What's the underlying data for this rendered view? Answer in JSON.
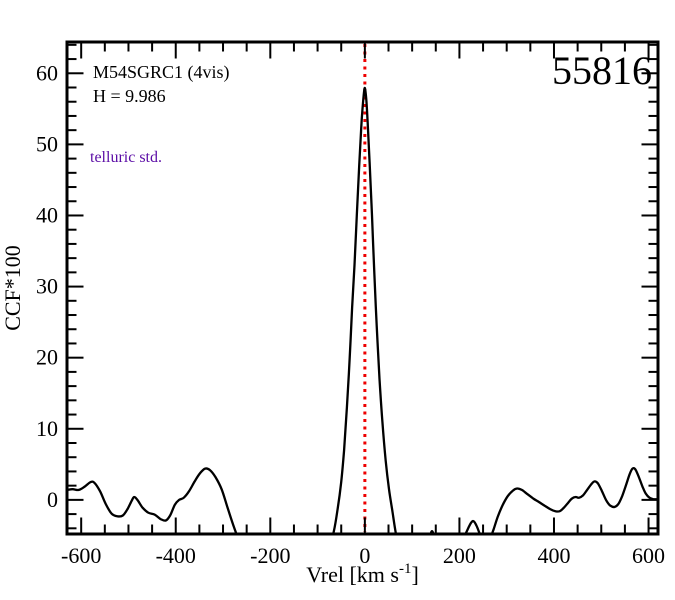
{
  "annotations": {
    "target_label": "M54SGRC1 (4vis)",
    "magnitude_label": "H = 9.986",
    "note_label": "telluric std.",
    "note_color": "#5a0ba5",
    "mjd_label": "55816"
  },
  "chart_data": {
    "type": "line",
    "title": "",
    "xlabel_main": "Vrel [km s",
    "xlabel_sup": "-1",
    "xlabel_close": "]",
    "ylabel": "CCF*100",
    "xlim": [
      -630,
      620
    ],
    "ylim": [
      -4.8,
      64.4
    ],
    "x_major_ticks": [
      -600,
      -400,
      -200,
      0,
      200,
      400,
      600
    ],
    "x_tick_labels": [
      "-600",
      "-400",
      "-200",
      "0",
      "200",
      "400",
      "600"
    ],
    "x_minor_step": 50,
    "y_major_ticks": [
      0,
      10,
      20,
      30,
      40,
      50,
      60
    ],
    "y_tick_labels": [
      "0",
      "10",
      "20",
      "30",
      "40",
      "50",
      "60"
    ],
    "y_minor_step": 2,
    "grid": false,
    "legend": false,
    "frame_color": "#000000",
    "marker_line": {
      "x": 0,
      "color": "#ee0000",
      "style": "dotted"
    },
    "series": [
      {
        "name": "ccf",
        "color": "#000000",
        "points": [
          [
            -630,
            1.4
          ],
          [
            -618,
            1.5
          ],
          [
            -605,
            1.4
          ],
          [
            -592,
            1.9
          ],
          [
            -580,
            2.5
          ],
          [
            -572,
            2.4
          ],
          [
            -560,
            1.2
          ],
          [
            -548,
            -0.6
          ],
          [
            -536,
            -1.9
          ],
          [
            -524,
            -2.3
          ],
          [
            -512,
            -2.2
          ],
          [
            -502,
            -1.3
          ],
          [
            -493,
            -0.1
          ],
          [
            -488,
            0.4
          ],
          [
            -481,
            0.0
          ],
          [
            -470,
            -1.1
          ],
          [
            -458,
            -1.8
          ],
          [
            -444,
            -2.1
          ],
          [
            -432,
            -2.7
          ],
          [
            -421,
            -2.9
          ],
          [
            -412,
            -2.2
          ],
          [
            -402,
            -0.7
          ],
          [
            -393,
            0.0
          ],
          [
            -383,
            0.3
          ],
          [
            -372,
            1.2
          ],
          [
            -360,
            2.6
          ],
          [
            -348,
            3.8
          ],
          [
            -338,
            4.4
          ],
          [
            -328,
            4.2
          ],
          [
            -316,
            3.2
          ],
          [
            -303,
            1.5
          ],
          [
            -290,
            -1.2
          ],
          [
            -278,
            -3.6
          ],
          [
            -266,
            -5.8
          ],
          [
            -255,
            -7.6
          ],
          [
            -240,
            -9.0
          ],
          [
            -220,
            -9.5
          ],
          [
            -190,
            -9.5
          ],
          [
            -160,
            -9.0
          ],
          [
            -130,
            -8.5
          ],
          [
            -110,
            -8.0
          ],
          [
            -90,
            -7.3
          ],
          [
            -75,
            -6.3
          ],
          [
            -66,
            -4.5
          ],
          [
            -58,
            -1.5
          ],
          [
            -50,
            2.5
          ],
          [
            -44,
            7.0
          ],
          [
            -38,
            13.0
          ],
          [
            -32,
            20.0
          ],
          [
            -27,
            27.0
          ],
          [
            -22,
            33.0
          ],
          [
            -17,
            40.0
          ],
          [
            -12,
            47.0
          ],
          [
            -8,
            52.0
          ],
          [
            -5,
            55.0
          ],
          [
            -2,
            57.2
          ],
          [
            0,
            57.9
          ],
          [
            3,
            56.3
          ],
          [
            6,
            53.0
          ],
          [
            10,
            47.5
          ],
          [
            15,
            40.0
          ],
          [
            20,
            32.0
          ],
          [
            25,
            24.5
          ],
          [
            31,
            17.0
          ],
          [
            37,
            11.0
          ],
          [
            44,
            5.5
          ],
          [
            51,
            1.5
          ],
          [
            58,
            -1.5
          ],
          [
            65,
            -4.5
          ],
          [
            73,
            -7.0
          ],
          [
            85,
            -9.0
          ],
          [
            100,
            -9.5
          ],
          [
            115,
            -9.0
          ],
          [
            128,
            -7.0
          ],
          [
            136,
            -5.5
          ],
          [
            142,
            -4.4
          ],
          [
            148,
            -5.5
          ],
          [
            158,
            -7.5
          ],
          [
            170,
            -9.0
          ],
          [
            185,
            -9.0
          ],
          [
            198,
            -7.5
          ],
          [
            207,
            -5.8
          ],
          [
            217,
            -4.2
          ],
          [
            225,
            -3.2
          ],
          [
            230,
            -3.0
          ],
          [
            236,
            -3.6
          ],
          [
            243,
            -4.8
          ],
          [
            250,
            -5.9
          ],
          [
            257,
            -6.2
          ],
          [
            264,
            -5.6
          ],
          [
            272,
            -4.2
          ],
          [
            281,
            -2.4
          ],
          [
            291,
            -0.8
          ],
          [
            302,
            0.5
          ],
          [
            313,
            1.3
          ],
          [
            322,
            1.6
          ],
          [
            332,
            1.4
          ],
          [
            344,
            0.8
          ],
          [
            356,
            0.2
          ],
          [
            368,
            -0.3
          ],
          [
            380,
            -0.8
          ],
          [
            392,
            -1.3
          ],
          [
            403,
            -1.6
          ],
          [
            412,
            -1.6
          ],
          [
            421,
            -1.1
          ],
          [
            430,
            -0.4
          ],
          [
            438,
            0.2
          ],
          [
            446,
            0.4
          ],
          [
            453,
            0.3
          ],
          [
            461,
            0.6
          ],
          [
            470,
            1.4
          ],
          [
            479,
            2.2
          ],
          [
            486,
            2.6
          ],
          [
            493,
            2.3
          ],
          [
            501,
            1.3
          ],
          [
            510,
            0.0
          ],
          [
            519,
            -0.8
          ],
          [
            528,
            -1.0
          ],
          [
            536,
            -0.6
          ],
          [
            544,
            0.5
          ],
          [
            552,
            2.0
          ],
          [
            560,
            3.6
          ],
          [
            566,
            4.4
          ],
          [
            572,
            4.3
          ],
          [
            579,
            3.3
          ],
          [
            587,
            1.9
          ],
          [
            594,
            0.9
          ],
          [
            602,
            0.3
          ],
          [
            610,
            0.1
          ],
          [
            618,
            0.1
          ]
        ]
      }
    ]
  }
}
